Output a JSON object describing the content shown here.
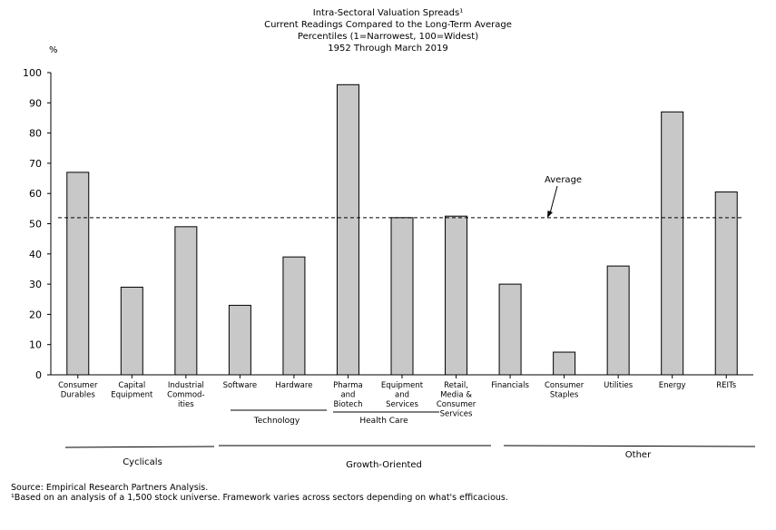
{
  "titles": [
    "Intra-Sectoral Valuation Spreads¹",
    "Current Readings Compared to the Long-Term Average",
    "Percentiles (1=Narrowest, 100=Widest)",
    "1952 Through March 2019"
  ],
  "y_unit": "%",
  "average_label": "Average",
  "subgroups": [
    "Technology",
    "Health Care"
  ],
  "groups": [
    "Cyclicals",
    "Growth-Oriented",
    "Other"
  ],
  "footnotes": [
    "Source: Empirical Research Partners Analysis.",
    "¹Based on an analysis of a 1,500  stock universe. Framework varies across sectors depending  on what's efficacious."
  ],
  "chart_data": {
    "type": "bar",
    "title": "Intra-Sectoral Valuation Spreads¹",
    "categories": [
      [
        "Consumer",
        "Durables"
      ],
      [
        "Capital",
        "Equipment"
      ],
      [
        "Industrial",
        "Commod-",
        "ities"
      ],
      [
        "Software"
      ],
      [
        "Hardware"
      ],
      [
        "Pharma",
        "and",
        "Biotech"
      ],
      [
        "Equipment",
        "and",
        "Services"
      ],
      [
        "Retail,",
        "Media &",
        "Consumer",
        "Services"
      ],
      [
        "Financials"
      ],
      [
        "Consumer",
        "Staples"
      ],
      [
        "Utilities"
      ],
      [
        "Energy"
      ],
      [
        "REITs"
      ]
    ],
    "values": [
      67,
      29,
      49,
      23,
      39,
      96,
      52,
      52.5,
      30,
      7.5,
      36,
      87,
      60.5
    ],
    "average": 52,
    "ylim": [
      0,
      100
    ],
    "yticks": [
      0,
      10,
      20,
      30,
      40,
      50,
      60,
      70,
      80,
      90,
      100
    ],
    "bar_color": "#c8c8c8",
    "grid": false
  }
}
